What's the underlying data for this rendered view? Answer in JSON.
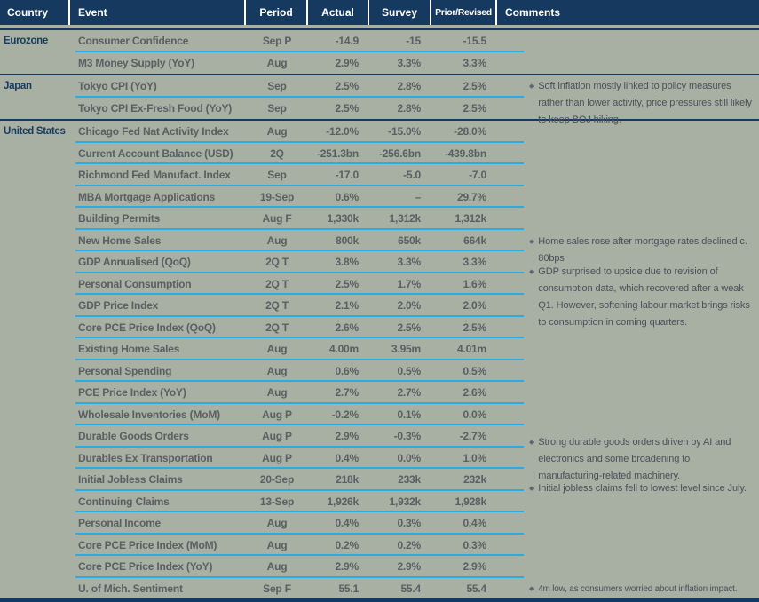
{
  "colors": {
    "background": "#a7b0a2",
    "accent_navy": "#16395f",
    "accent_cyan": "#2aabe2",
    "header_text": "#ffffff",
    "body_text": "#5b5e63",
    "comment_text": "#49505c"
  },
  "icons": {
    "bullet_glyph": "◆"
  },
  "header": {
    "country": "Country",
    "event": "Event",
    "period": "Period",
    "actual": "Actual",
    "survey": "Survey",
    "prior": "Prior/Revised",
    "comments": "Comments"
  },
  "table": {
    "sections": [
      {
        "country": "Eurozone",
        "rows": [
          {
            "event": "Consumer Confidence",
            "period": "Sep P",
            "actual": "-14.9",
            "survey": "-15",
            "prior": "-15.5"
          },
          {
            "event": "M3 Money Supply (YoY)",
            "period": "Aug",
            "actual": "2.9%",
            "survey": "3.3%",
            "prior": "3.3%"
          }
        ]
      },
      {
        "country": "Japan",
        "rows": [
          {
            "event": "Tokyo CPI (YoY)",
            "period": "Sep",
            "actual": "2.5%",
            "survey": "2.8%",
            "prior": "2.5%"
          },
          {
            "event": "Tokyo CPI Ex-Fresh Food (YoY)",
            "period": "Sep",
            "actual": "2.5%",
            "survey": "2.8%",
            "prior": "2.5%"
          }
        ]
      },
      {
        "country": "United States",
        "rows": [
          {
            "event": "Chicago Fed Nat Activity Index",
            "period": "Aug",
            "actual": "-12.0%",
            "survey": "-15.0%",
            "prior": "-28.0%"
          },
          {
            "event": "Current Account Balance (USD)",
            "period": "2Q",
            "actual": "-251.3bn",
            "survey": "-256.6bn",
            "prior": "-439.8bn"
          },
          {
            "event": "Richmond Fed Manufact. Index",
            "period": "Sep",
            "actual": "-17.0",
            "survey": "-5.0",
            "prior": "-7.0"
          },
          {
            "event": "MBA Mortgage Applications",
            "period": "19-Sep",
            "actual": "0.6%",
            "survey": "–",
            "prior": "29.7%"
          },
          {
            "event": "Building Permits",
            "period": "Aug F",
            "actual": "1,330k",
            "survey": "1,312k",
            "prior": "1,312k"
          },
          {
            "event": "New Home Sales",
            "period": "Aug",
            "actual": "800k",
            "survey": "650k",
            "prior": "664k"
          },
          {
            "event": "GDP Annualised (QoQ)",
            "period": "2Q T",
            "actual": "3.8%",
            "survey": "3.3%",
            "prior": "3.3%"
          },
          {
            "event": "Personal Consumption",
            "period": "2Q T",
            "actual": "2.5%",
            "survey": "1.7%",
            "prior": "1.6%"
          },
          {
            "event": "GDP Price Index",
            "period": "2Q T",
            "actual": "2.1%",
            "survey": "2.0%",
            "prior": "2.0%"
          },
          {
            "event": "Core PCE Price Index (QoQ)",
            "period": "2Q T",
            "actual": "2.6%",
            "survey": "2.5%",
            "prior": "2.5%"
          },
          {
            "event": "Existing Home Sales",
            "period": "Aug",
            "actual": "4.00m",
            "survey": "3.95m",
            "prior": "4.01m"
          },
          {
            "event": "Personal Spending",
            "period": "Aug",
            "actual": "0.6%",
            "survey": "0.5%",
            "prior": "0.5%"
          },
          {
            "event": "PCE Price Index (YoY)",
            "period": "Aug",
            "actual": "2.7%",
            "survey": "2.7%",
            "prior": "2.6%"
          },
          {
            "event": "Wholesale Inventories (MoM)",
            "period": "Aug P",
            "actual": "-0.2%",
            "survey": "0.1%",
            "prior": "0.0%"
          },
          {
            "event": "Durable Goods Orders",
            "period": "Aug P",
            "actual": "2.9%",
            "survey": "-0.3%",
            "prior": "-2.7%"
          },
          {
            "event": "Durables Ex Transportation",
            "period": "Aug P",
            "actual": "0.4%",
            "survey": "0.0%",
            "prior": "1.0%"
          },
          {
            "event": "Initial Jobless Claims",
            "period": "20-Sep",
            "actual": "218k",
            "survey": "233k",
            "prior": "232k"
          },
          {
            "event": "Continuing Claims",
            "period": "13-Sep",
            "actual": "1,926k",
            "survey": "1,932k",
            "prior": "1,928k"
          },
          {
            "event": "Personal Income",
            "period": "Aug",
            "actual": "0.4%",
            "survey": "0.3%",
            "prior": "0.4%"
          },
          {
            "event": "Core PCE Price Index (MoM)",
            "period": "Aug",
            "actual": "0.2%",
            "survey": "0.2%",
            "prior": "0.3%"
          },
          {
            "event": "Core PCE Price Index (YoY)",
            "period": "Aug",
            "actual": "2.9%",
            "survey": "2.9%",
            "prior": "2.9%"
          },
          {
            "event": "U. of Mich. Sentiment",
            "period": "Sep F",
            "actual": "55.1",
            "survey": "55.4",
            "prior": "55.4"
          }
        ]
      }
    ],
    "comments": [
      {
        "text": "Soft inflation mostly linked to policy measures rather than lower activity, price pressures still likely to keep BOJ hiking."
      },
      {
        "text": "Home sales rose after mortgage rates declined c. 80bps"
      },
      {
        "text": "GDP surprised to upside due to revision of consumption data, which recovered after a weak Q1. However, softening labour market brings risks to consumption in coming quarters."
      },
      {
        "text": "Strong durable goods orders driven by AI and electronics and some broadening to manufacturing-related machinery."
      },
      {
        "text": "Initial jobless claims fell to lowest level since July."
      },
      {
        "text": "4m low, as consumers worried about inflation impact."
      }
    ]
  }
}
